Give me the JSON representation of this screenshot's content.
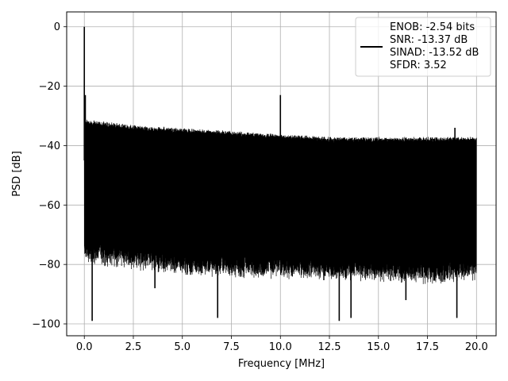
{
  "chart_data": {
    "type": "line",
    "title": "",
    "xlabel": "Frequency [MHz]",
    "ylabel": "PSD [dB]",
    "xlim": [
      -0.9,
      21.0
    ],
    "ylim": [
      -104,
      5
    ],
    "xticks": [
      0.0,
      2.5,
      5.0,
      7.5,
      10.0,
      12.5,
      15.0,
      17.5,
      20.0
    ],
    "xtick_labels": [
      "0.0",
      "2.5",
      "5.0",
      "7.5",
      "10.0",
      "12.5",
      "15.0",
      "17.5",
      "20.0"
    ],
    "yticks": [
      0,
      -20,
      -40,
      -60,
      -80,
      -100
    ],
    "ytick_labels": [
      "0",
      "−20",
      "−40",
      "−60",
      "−80",
      "−100"
    ],
    "grid": true,
    "legend_position": "top-right",
    "series": [
      {
        "color": "#000000",
        "envelope": {
          "x": [
            0.0,
            2.5,
            5.0,
            7.5,
            10.0,
            12.5,
            15.0,
            17.5,
            20.0
          ],
          "upper": [
            -31,
            -33,
            -34,
            -35,
            -36,
            -37,
            -37,
            -37,
            -37
          ],
          "lower": [
            -80,
            -82,
            -84,
            -85,
            -85,
            -86,
            -86,
            -87,
            -86
          ]
        },
        "spikes": [
          {
            "x": 0.0,
            "y": 0
          },
          {
            "x": 0.05,
            "y": -23
          },
          {
            "x": 10.0,
            "y": -23
          },
          {
            "x": 0.4,
            "y": -99
          },
          {
            "x": 6.8,
            "y": -98
          },
          {
            "x": 13.0,
            "y": -99
          },
          {
            "x": 13.6,
            "y": -98
          },
          {
            "x": 19.0,
            "y": -98
          },
          {
            "x": 16.4,
            "y": -92
          },
          {
            "x": 3.6,
            "y": -88
          },
          {
            "x": 18.9,
            "y": -34
          }
        ]
      }
    ],
    "legend_lines": [
      "ENOB: -2.54 bits",
      "SNR: -13.37 dB",
      "SINAD: -13.52 dB",
      "SFDR: 3.52"
    ]
  }
}
